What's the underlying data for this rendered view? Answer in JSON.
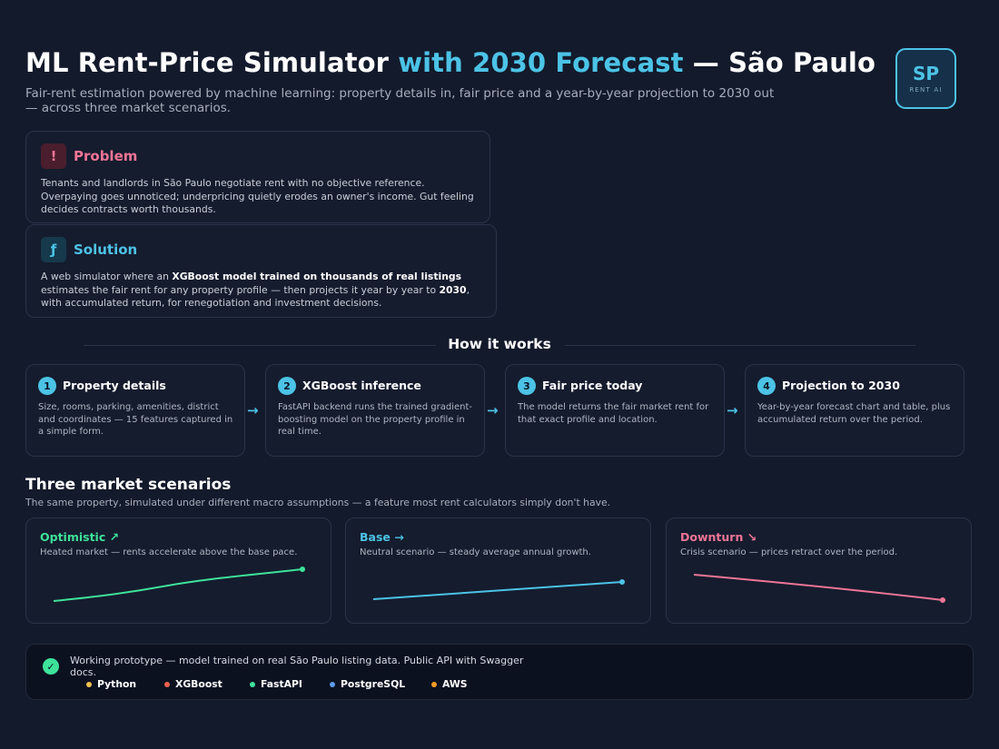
{
  "header": {
    "title_main": "ML Rent-Price Simulator ",
    "title_accent": "with 2030 Forecast",
    "title_tail": " — São Paulo",
    "subtitle": "Fair-rent estimation powered by machine learning: property details in, fair price and a year-by-year projection to 2030 out — across three market scenarios.",
    "logo_initials": "SP",
    "logo_caption": "RENT AI"
  },
  "problem": {
    "icon": "!",
    "label": "Problem",
    "body": "Tenants and landlords in São Paulo negotiate rent with no objective reference. Overpaying goes unnoticed; underpricing quietly erodes an owner's income. Gut feeling decides contracts worth thousands."
  },
  "solution": {
    "icon": "ƒ",
    "label": "Solution",
    "body_1": "A web simulator where an ",
    "body_bold_1": "XGBoost model trained on thousands of real listings",
    "body_2": " estimates the fair rent for any property profile — then projects it year by year to ",
    "body_bold_2": "2030",
    "body_3": ", with accumulated return, for renegotiation and investment decisions."
  },
  "how_it_works": {
    "title": "How it works",
    "steps": [
      {
        "num": "1",
        "title": "Property details",
        "desc": "Size, rooms, parking, amenities, district and coordinates — 15 features captured in a simple form."
      },
      {
        "num": "2",
        "title": "XGBoost inference",
        "desc": "FastAPI backend runs the trained gradient-boosting model on the property profile in real time."
      },
      {
        "num": "3",
        "title": "Fair price today",
        "desc": "The model returns the fair market rent for that exact profile and location."
      },
      {
        "num": "4",
        "title": "Projection to 2030",
        "desc": "Year-by-year forecast chart and table, plus accumulated return over the period."
      }
    ],
    "arrow": "→"
  },
  "scenarios": {
    "title": "Three market scenarios",
    "subtitle": "The same property, simulated under different macro assumptions — a feature most rent calculators simply don't have.",
    "items": [
      {
        "title": "Optimistic ↗",
        "desc": "Heated market — rents accelerate above the base pace.",
        "color": "#3ee29a",
        "trend": "up-accelerating"
      },
      {
        "title": "Base →",
        "desc": "Neutral scenario — steady average annual growth.",
        "color": "#4cc3e6",
        "trend": "up-steady"
      },
      {
        "title": "Downturn ↘",
        "desc": "Crisis scenario — prices retract over the period.",
        "color": "#f07596",
        "trend": "down"
      }
    ]
  },
  "footer": {
    "check_icon": "✓",
    "text": "Working prototype — model trained on real São Paulo listing data. Public API with Swagger docs.",
    "tech": [
      {
        "name": "Python",
        "color": "#f2c14e"
      },
      {
        "name": "XGBoost",
        "color": "#f0614e"
      },
      {
        "name": "FastAPI",
        "color": "#3ee29a"
      },
      {
        "name": "PostgreSQL",
        "color": "#5b9be6"
      },
      {
        "name": "AWS",
        "color": "#f59a23"
      }
    ]
  }
}
